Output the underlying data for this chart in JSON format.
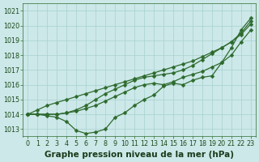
{
  "xlabel": "Graphe pression niveau de la mer (hPa)",
  "hours": [
    0,
    1,
    2,
    3,
    4,
    5,
    6,
    7,
    8,
    9,
    10,
    11,
    12,
    13,
    14,
    15,
    16,
    17,
    18,
    19,
    20,
    21,
    22,
    23
  ],
  "series": [
    [
      1014.0,
      1014.0,
      1013.9,
      1013.8,
      1013.5,
      1012.9,
      1012.7,
      1012.8,
      1013.0,
      1013.8,
      1014.1,
      1014.6,
      1015.0,
      1015.3,
      1015.9,
      1016.1,
      1016.0,
      1016.3,
      1016.5,
      1016.6,
      1017.5,
      1018.5,
      1019.7,
      1020.5
    ],
    [
      1014.0,
      1014.0,
      1014.0,
      1014.0,
      1014.1,
      1014.2,
      1014.4,
      1014.6,
      1014.9,
      1015.2,
      1015.5,
      1015.8,
      1016.0,
      1016.1,
      1016.0,
      1016.2,
      1016.5,
      1016.7,
      1016.9,
      1017.2,
      1017.5,
      1018.0,
      1018.9,
      1019.7
    ],
    [
      1014.0,
      1014.0,
      1014.0,
      1014.0,
      1014.1,
      1014.3,
      1014.6,
      1015.0,
      1015.4,
      1015.7,
      1016.0,
      1016.3,
      1016.5,
      1016.6,
      1016.7,
      1016.8,
      1017.0,
      1017.3,
      1017.7,
      1018.1,
      1018.5,
      1018.9,
      1019.4,
      1020.1
    ],
    [
      1014.0,
      1014.3,
      1014.6,
      1014.8,
      1015.0,
      1015.2,
      1015.4,
      1015.6,
      1015.8,
      1016.0,
      1016.2,
      1016.4,
      1016.6,
      1016.8,
      1017.0,
      1017.2,
      1017.4,
      1017.6,
      1017.9,
      1018.2,
      1018.5,
      1018.9,
      1019.5,
      1020.3
    ]
  ],
  "line_color": "#2d6a2d",
  "marker": "D",
  "markersize": 2.5,
  "bg_color": "#cce8e8",
  "grid_color": "#a8d0d0",
  "ylim": [
    1012.5,
    1021.5
  ],
  "yticks": [
    1013,
    1014,
    1015,
    1016,
    1017,
    1018,
    1019,
    1020,
    1021
  ],
  "xticks": [
    0,
    1,
    2,
    3,
    4,
    5,
    6,
    7,
    8,
    9,
    10,
    11,
    12,
    13,
    14,
    15,
    16,
    17,
    18,
    19,
    20,
    21,
    22,
    23
  ],
  "xlabel_fontsize": 7.5,
  "tick_fontsize": 5.8,
  "linewidth": 0.9
}
